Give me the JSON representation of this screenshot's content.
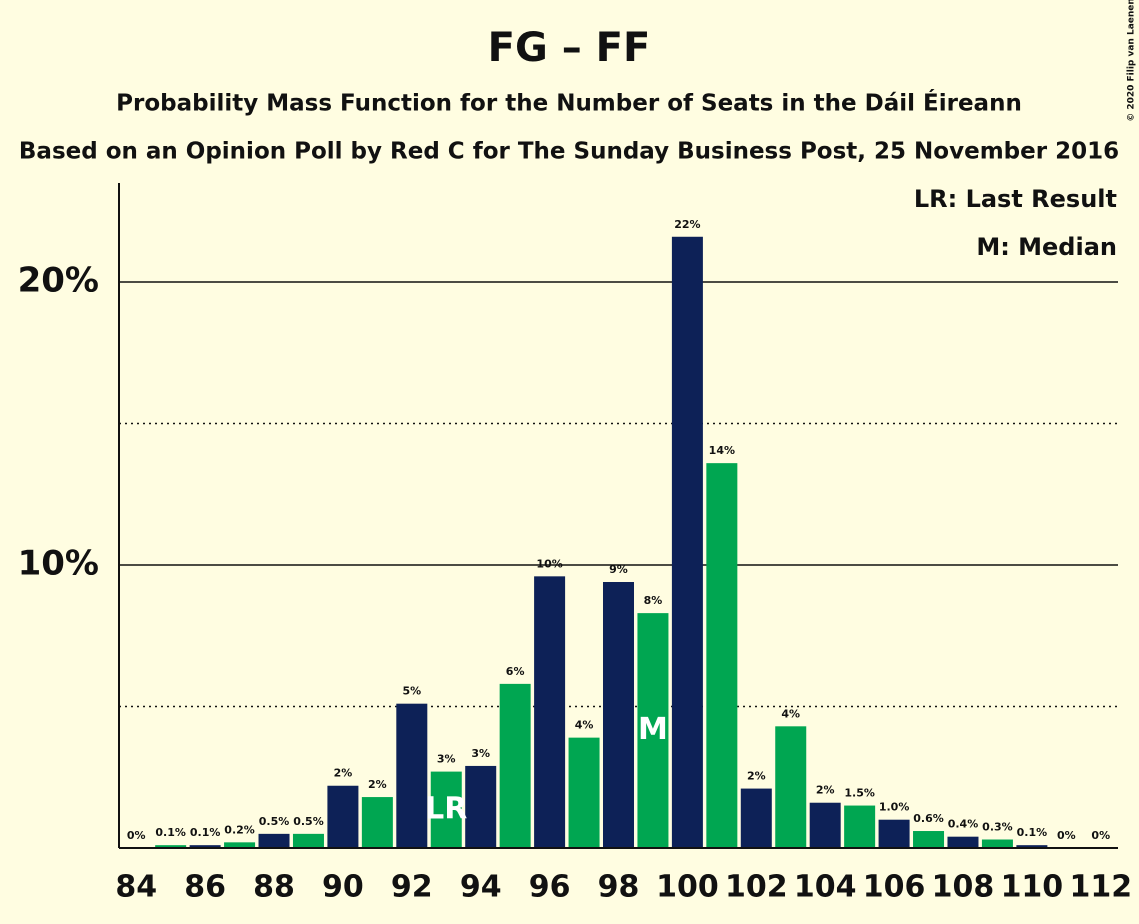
{
  "chart_data": {
    "type": "bar",
    "title": "FG – FF",
    "subtitle": "Probability Mass Function for the Number of Seats in the Dáil Éireann",
    "subtitle2": "Based on an Opinion Poll by Red C for The Sunday Business Post, 25 November 2016",
    "copyright": "© 2020 Filip van Laenen",
    "legend": [
      "LR: Last Result",
      "M: Median"
    ],
    "x": [
      84,
      85,
      86,
      87,
      88,
      89,
      90,
      91,
      92,
      93,
      94,
      95,
      96,
      97,
      98,
      99,
      100,
      101,
      102,
      103,
      104,
      105,
      106,
      107,
      108,
      109,
      110,
      111,
      112
    ],
    "values": [
      0,
      0.1,
      0.1,
      0.2,
      0.5,
      0.5,
      2.2,
      1.8,
      5.1,
      2.7,
      2.9,
      5.8,
      9.6,
      3.9,
      9.4,
      8.3,
      21.6,
      13.6,
      2.1,
      4.3,
      1.6,
      1.5,
      1.0,
      0.6,
      0.4,
      0.3,
      0.1,
      0,
      0
    ],
    "value_labels": [
      "0%",
      "0.1%",
      "0.1%",
      "0.2%",
      "0.5%",
      "0.5%",
      "2%",
      "2%",
      "5%",
      "3%",
      "3%",
      "6%",
      "10%",
      "4%",
      "9%",
      "8%",
      "22%",
      "14%",
      "2%",
      "4%",
      "2%",
      "1.5%",
      "1.0%",
      "0.6%",
      "0.4%",
      "0.3%",
      "0.1%",
      "0%",
      "0%"
    ],
    "colors": [
      "#0d2157",
      "#00a651"
    ],
    "annotations": [
      {
        "label": "LR",
        "x": 93
      },
      {
        "label": "M",
        "x": 99
      }
    ],
    "xlim": [
      83.5,
      112.5
    ],
    "xticks": [
      84,
      86,
      88,
      90,
      92,
      94,
      96,
      98,
      100,
      102,
      104,
      106,
      108,
      110,
      112
    ],
    "ylim": [
      0,
      23.5
    ],
    "yticks": [
      {
        "value": 10,
        "label": "10%"
      },
      {
        "value": 20,
        "label": "20%"
      }
    ],
    "minor_yticks": [
      5,
      15
    ],
    "grid": true
  }
}
